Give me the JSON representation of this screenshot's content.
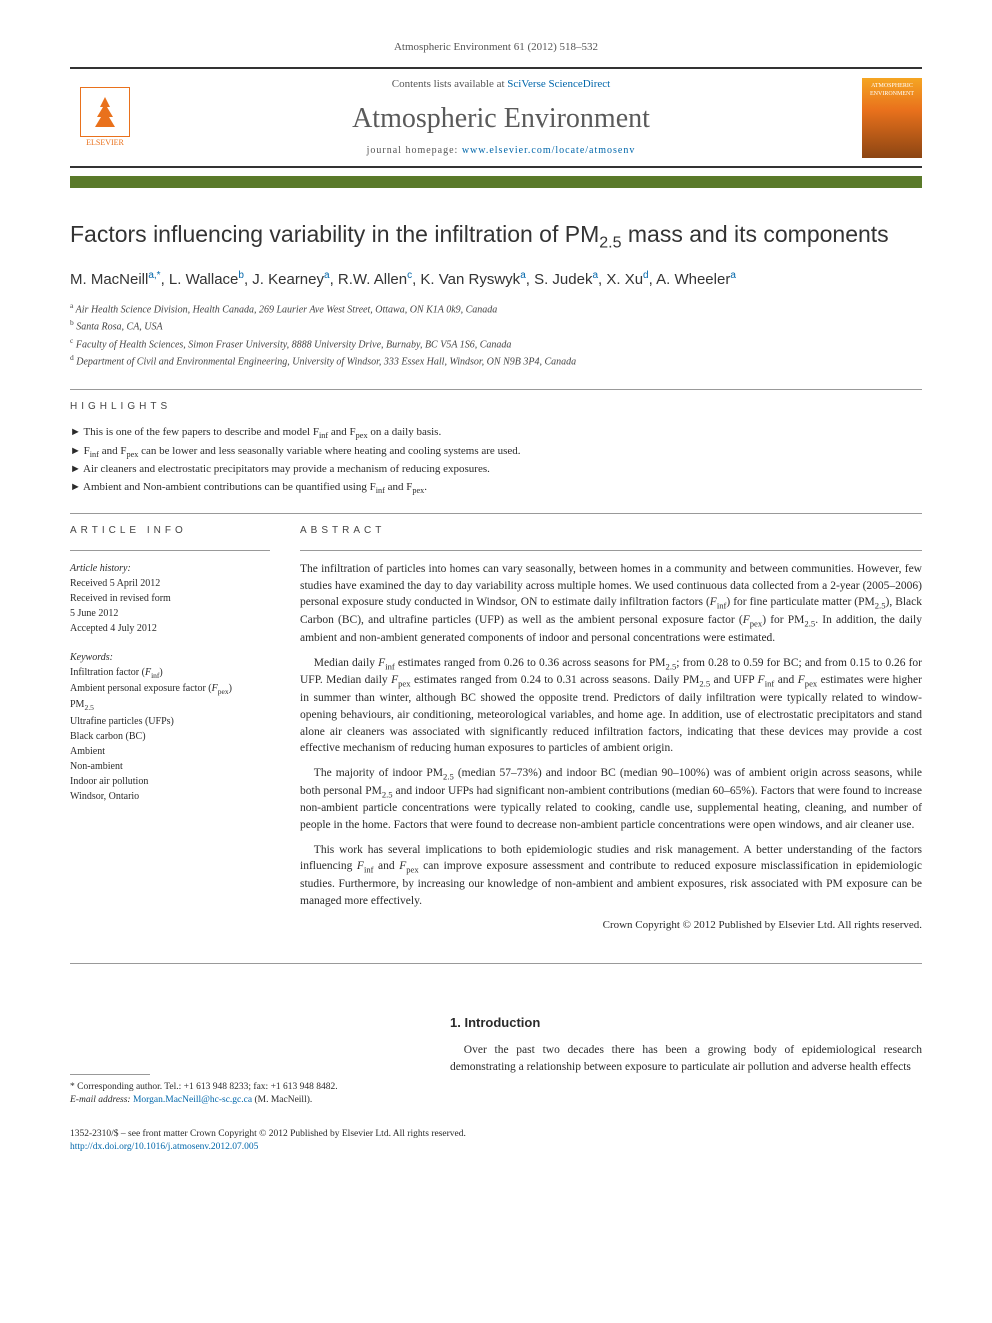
{
  "header": {
    "citation": "Atmospheric Environment 61 (2012) 518–532",
    "contents_prefix": "Contents lists available at ",
    "contents_link": "SciVerse ScienceDirect",
    "journal_title": "Atmospheric Environment",
    "homepage_prefix": "journal homepage: ",
    "homepage_url": "www.elsevier.com/locate/atmosenv",
    "elsevier_label": "ELSEVIER",
    "cover_label": "ATMOSPHERIC ENVIRONMENT"
  },
  "title": {
    "pre": "Factors influencing variability in the infiltration of PM",
    "sub": "2.5",
    "post": " mass and its components"
  },
  "authors_html": "M. MacNeill<sup>a,*</sup>, L. Wallace<sup>b</sup>, J. Kearney<sup>a</sup>, R.W. Allen<sup>c</sup>, K. Van Ryswyk<sup>a</sup>, S. Judek<sup>a</sup>, X. Xu<sup>d</sup>, A. Wheeler<sup>a</sup>",
  "affiliations": [
    {
      "sup": "a",
      "text": "Air Health Science Division, Health Canada, 269 Laurier Ave West Street, Ottawa, ON K1A 0k9, Canada"
    },
    {
      "sup": "b",
      "text": "Santa Rosa, CA, USA"
    },
    {
      "sup": "c",
      "text": "Faculty of Health Sciences, Simon Fraser University, 8888 University Drive, Burnaby, BC V5A 1S6, Canada"
    },
    {
      "sup": "d",
      "text": "Department of Civil and Environmental Engineering, University of Windsor, 333 Essex Hall, Windsor, ON N9B 3P4, Canada"
    }
  ],
  "labels": {
    "highlights": "HIGHLIGHTS",
    "article_info": "ARTICLE INFO",
    "abstract": "ABSTRACT",
    "history": "Article history:",
    "keywords": "Keywords:",
    "intro": "1.  Introduction"
  },
  "highlights": [
    "This is one of the few papers to describe and model F<sub>inf</sub> and F<sub>pex</sub> on a daily basis.",
    "F<sub>inf</sub> and F<sub>pex</sub> can be lower and less seasonally variable where heating and cooling systems are used.",
    "Air cleaners and electrostatic precipitators may provide a mechanism of reducing exposures.",
    "Ambient and Non-ambient contributions can be quantified using F<sub>inf</sub> and F<sub>pex</sub>."
  ],
  "history": {
    "received": "Received 5 April 2012",
    "revised": "Received in revised form\n5 June 2012",
    "accepted": "Accepted 4 July 2012"
  },
  "keywords": [
    "Infiltration factor (<i>F</i><sub>inf</sub>)",
    "Ambient personal exposure factor (<i>F</i><sub>pex</sub>)",
    "PM<sub>2.5</sub>",
    "Ultrafine particles (UFPs)",
    "Black carbon (BC)",
    "Ambient",
    "Non-ambient",
    "Indoor air pollution",
    "Windsor, Ontario"
  ],
  "abstract": [
    "The infiltration of particles into homes can vary seasonally, between homes in a community and between communities. However, few studies have examined the day to day variability across multiple homes. We used continuous data collected from a 2-year (2005–2006) personal exposure study conducted in Windsor, ON to estimate daily infiltration factors (<i>F</i><sub>inf</sub>) for fine particulate matter (PM<sub>2.5</sub>), Black Carbon (BC), and ultrafine particles (UFP) as well as the ambient personal exposure factor (<i>F</i><sub>pex</sub>) for PM<sub>2.5</sub>. In addition, the daily ambient and non-ambient generated components of indoor and personal concentrations were estimated.",
    "Median daily <i>F</i><sub>inf</sub> estimates ranged from 0.26 to 0.36 across seasons for PM<sub>2.5</sub>; from 0.28 to 0.59 for BC; and from 0.15 to 0.26 for UFP. Median daily <i>F</i><sub>pex</sub> estimates ranged from 0.24 to 0.31 across seasons. Daily PM<sub>2.5</sub> and UFP <i>F</i><sub>inf</sub> and <i>F</i><sub>pex</sub> estimates were higher in summer than winter, although BC showed the opposite trend. Predictors of daily infiltration were typically related to window-opening behaviours, air conditioning, meteorological variables, and home age. In addition, use of electrostatic precipitators and stand alone air cleaners was associated with significantly reduced infiltration factors, indicating that these devices may provide a cost effective mechanism of reducing human exposures to particles of ambient origin.",
    "The majority of indoor PM<sub>2.5</sub> (median 57–73%) and indoor BC (median 90–100%) was of ambient origin across seasons, while both personal PM<sub>2.5</sub> and indoor UFPs had significant non-ambient contributions (median 60–65%). Factors that were found to increase non-ambient particle concentrations were typically related to cooking, candle use, supplemental heating, cleaning, and number of people in the home. Factors that were found to decrease non-ambient particle concentrations were open windows, and air cleaner use.",
    "This work has several implications to both epidemiologic studies and risk management. A better understanding of the factors influencing <i>F</i><sub>inf</sub> and <i>F</i><sub>pex</sub> can improve exposure assessment and contribute to reduced exposure misclassification in epidemiologic studies. Furthermore, by increasing our knowledge of non-ambient and ambient exposures, risk associated with PM exposure can be managed more effectively."
  ],
  "copyright": "Crown Copyright © 2012 Published by Elsevier Ltd. All rights reserved.",
  "footnote": {
    "corr": "* Corresponding author. Tel.: +1 613 948 8233; fax: +1 613 948 8482.",
    "email_label": "E-mail address: ",
    "email": "Morgan.MacNeill@hc-sc.gc.ca",
    "email_name": " (M. MacNeill)."
  },
  "intro_body": "Over the past two decades there has been a growing body of epidemiological research demonstrating a relationship between exposure to particulate air pollution and adverse health effects",
  "footer": {
    "issn": "1352-2310/$ – see front matter Crown Copyright © 2012 Published by Elsevier Ltd. All rights reserved.",
    "doi_prefix": "http://dx.doi.org/",
    "doi": "10.1016/j.atmosenv.2012.07.005"
  },
  "colors": {
    "accent_orange": "#e9711c",
    "bar_green": "#5a7a2a",
    "link_blue": "#0066aa",
    "text_grey": "#5a5a5a"
  }
}
